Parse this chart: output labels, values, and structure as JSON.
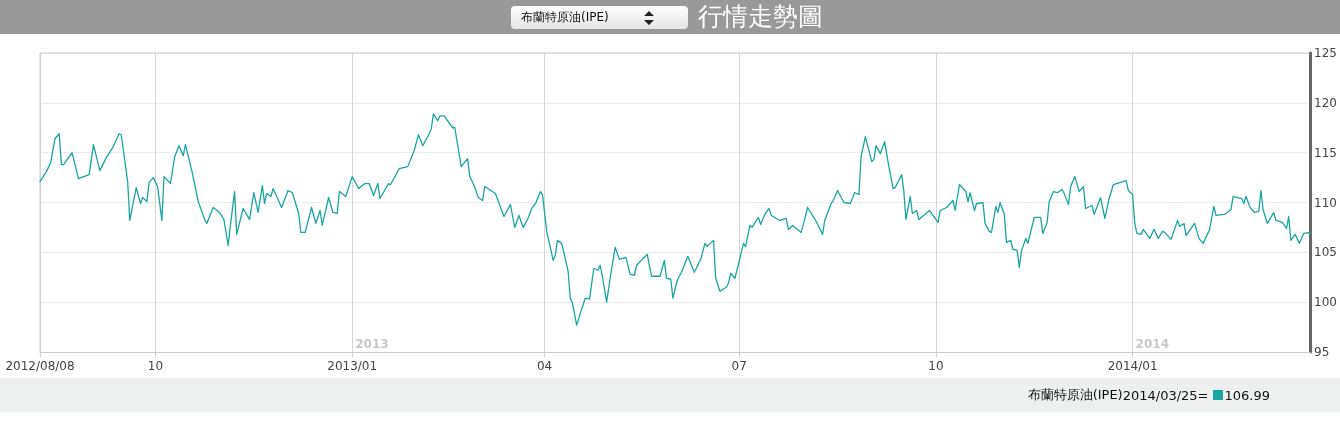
{
  "chart_data": {
    "type": "line",
    "title": "行情走勢圖",
    "subtitle": "布蘭特原油(IPE)",
    "x": [
      "2012-08-08",
      "2012-08-11",
      "2012-08-13",
      "2012-08-15",
      "2012-08-17",
      "2012-08-18",
      "2012-08-19",
      "2012-08-23",
      "2012-08-26",
      "2012-08-31",
      "2012-09-02",
      "2012-09-05",
      "2012-09-08",
      "2012-09-11",
      "2012-09-14",
      "2012-09-15",
      "2012-09-18",
      "2012-09-19",
      "2012-09-22",
      "2012-09-24",
      "2012-09-25",
      "2012-09-27",
      "2012-09-28",
      "2012-09-30",
      "2012-10-02",
      "2012-10-04",
      "2012-10-05",
      "2012-10-08",
      "2012-10-10",
      "2012-10-12",
      "2012-10-14",
      "2012-10-15",
      "2012-10-18",
      "2012-10-21",
      "2012-10-24",
      "2012-10-25",
      "2012-10-28",
      "2012-10-31",
      "2012-11-02",
      "2012-11-04",
      "2012-11-05",
      "2012-11-07",
      "2012-11-08",
      "2012-11-11",
      "2012-11-14",
      "2012-11-16",
      "2012-11-18",
      "2012-11-20",
      "2012-11-21",
      "2012-11-22",
      "2012-11-24",
      "2012-11-25",
      "2012-11-29",
      "2012-12-02",
      "2012-12-04",
      "2012-12-07",
      "2012-12-08",
      "2012-12-10",
      "2012-12-13",
      "2012-12-15",
      "2012-12-17",
      "2012-12-18",
      "2012-12-21",
      "2012-12-23",
      "2012-12-25",
      "2012-12-26",
      "2012-12-29",
      "2013-01-01",
      "2013-01-04",
      "2013-01-07",
      "2013-01-09",
      "2013-01-11",
      "2013-01-13",
      "2013-01-14",
      "2013-01-18",
      "2013-01-19",
      "2013-01-23",
      "2013-01-27",
      "2013-01-30",
      "2013-02-01",
      "2013-02-03",
      "2013-02-06",
      "2013-02-07",
      "2013-02-08",
      "2013-02-10",
      "2013-02-11",
      "2013-02-13",
      "2013-02-17",
      "2013-02-18",
      "2013-02-21",
      "2013-02-24",
      "2013-02-25",
      "2013-02-27",
      "2013-03-01",
      "2013-03-03",
      "2013-03-04",
      "2013-03-09",
      "2013-03-13",
      "2013-03-16",
      "2013-03-18",
      "2013-03-20",
      "2013-03-22",
      "2013-03-24",
      "2013-03-26",
      "2013-03-28",
      "2013-03-30",
      "2013-03-31",
      "2013-04-02",
      "2013-04-05",
      "2013-04-06",
      "2013-04-07",
      "2013-04-09",
      "2013-04-12",
      "2013-04-13",
      "2013-04-14",
      "2013-04-16",
      "2013-04-18",
      "2013-04-20",
      "2013-04-22",
      "2013-04-24",
      "2013-04-26",
      "2013-04-27",
      "2013-04-28",
      "2013-04-30",
      "2013-05-02",
      "2013-05-04",
      "2013-05-06",
      "2013-05-09",
      "2013-05-11",
      "2013-05-13",
      "2013-05-14",
      "2013-05-19",
      "2013-05-21",
      "2013-05-25",
      "2013-05-27",
      "2013-05-28",
      "2013-05-30",
      "2013-05-31",
      "2013-06-02",
      "2013-06-04",
      "2013-06-07",
      "2013-06-10",
      "2013-06-13",
      "2013-06-15",
      "2013-06-16",
      "2013-06-19",
      "2013-06-20",
      "2013-06-22",
      "2013-06-25",
      "2013-06-26",
      "2013-06-27",
      "2013-06-29",
      "2013-07-01",
      "2013-07-03",
      "2013-07-04",
      "2013-07-06",
      "2013-07-07",
      "2013-07-10",
      "2013-07-11",
      "2013-07-13",
      "2013-07-15",
      "2013-07-16",
      "2013-07-20",
      "2013-07-23",
      "2013-07-24",
      "2013-07-26",
      "2013-07-30",
      "2013-07-31",
      "2013-08-02",
      "2013-08-06",
      "2013-08-09",
      "2013-08-10",
      "2013-08-13",
      "2013-08-14",
      "2013-08-16",
      "2013-08-19",
      "2013-08-22",
      "2013-08-24",
      "2013-08-26",
      "2013-08-27",
      "2013-08-29",
      "2013-09-01",
      "2013-09-02",
      "2013-09-03",
      "2013-09-05",
      "2013-09-07",
      "2013-09-09",
      "2013-09-11",
      "2013-09-12",
      "2013-09-15",
      "2013-09-16",
      "2013-09-17",
      "2013-09-19",
      "2013-09-20",
      "2013-09-22",
      "2013-09-23",
      "2013-09-28",
      "2013-10-02",
      "2013-10-03",
      "2013-10-06",
      "2013-10-09",
      "2013-10-10",
      "2013-10-12",
      "2013-10-15",
      "2013-10-16",
      "2013-10-17",
      "2013-10-19",
      "2013-10-20",
      "2013-10-23",
      "2013-10-24",
      "2013-10-26",
      "2013-10-27",
      "2013-10-29",
      "2013-10-30",
      "2013-10-31",
      "2013-11-02",
      "2013-11-03",
      "2013-11-05",
      "2013-11-06",
      "2013-11-08",
      "2013-11-09",
      "2013-11-10",
      "2013-11-12",
      "2013-11-13",
      "2013-11-16",
      "2013-11-19",
      "2013-11-20",
      "2013-11-22",
      "2013-11-23",
      "2013-11-25",
      "2013-11-27",
      "2013-11-29",
      "2013-11-30",
      "2013-12-02",
      "2013-12-03",
      "2013-12-05",
      "2013-12-07",
      "2013-12-09",
      "2013-12-10",
      "2013-12-13",
      "2013-12-14",
      "2013-12-17",
      "2013-12-19",
      "2013-12-21",
      "2013-12-23",
      "2013-12-26",
      "2013-12-29",
      "2013-12-30",
      "2014-01-01",
      "2014-01-02",
      "2014-01-03",
      "2014-01-05",
      "2014-01-06",
      "2014-01-09",
      "2014-01-11",
      "2014-01-13",
      "2014-01-15",
      "2014-01-16",
      "2014-01-19",
      "2014-01-22",
      "2014-01-23",
      "2014-01-25",
      "2014-01-26",
      "2014-01-30",
      "2014-02-01",
      "2014-02-03",
      "2014-02-06",
      "2014-02-08",
      "2014-02-09",
      "2014-02-13",
      "2014-02-16",
      "2014-02-17",
      "2014-02-21",
      "2014-02-22",
      "2014-02-23",
      "2014-02-25",
      "2014-02-27",
      "2014-03-01",
      "2014-03-02",
      "2014-03-03",
      "2014-03-05",
      "2014-03-08",
      "2014-03-09",
      "2014-03-12",
      "2014-03-14",
      "2014-03-15",
      "2014-03-16",
      "2014-03-18",
      "2014-03-20",
      "2014-03-22",
      "2014-03-25"
    ],
    "series": [
      {
        "name": "布蘭特原油(IPE)",
        "color": "#1aa6a0",
        "values": [
          112.1,
          113.1,
          114.0,
          116.4,
          116.9,
          113.8,
          113.8,
          115.0,
          112.4,
          112.8,
          115.8,
          113.2,
          114.5,
          115.5,
          116.9,
          116.8,
          112.1,
          108.2,
          111.5,
          109.9,
          110.5,
          110.1,
          112.0,
          112.5,
          111.6,
          108.2,
          112.6,
          111.9,
          114.6,
          115.7,
          114.7,
          115.8,
          113.2,
          110.1,
          108.3,
          107.9,
          109.5,
          109.0,
          108.3,
          105.7,
          107.6,
          111.1,
          106.8,
          109.4,
          108.3,
          111.0,
          109.0,
          111.7,
          109.9,
          110.9,
          110.6,
          111.4,
          109.5,
          111.2,
          111.0,
          108.9,
          107.0,
          107.0,
          109.5,
          107.9,
          109.2,
          107.7,
          110.5,
          109.0,
          108.9,
          111.1,
          110.6,
          112.6,
          111.4,
          111.9,
          111.9,
          110.7,
          111.9,
          110.4,
          111.9,
          111.8,
          113.4,
          113.6,
          115.2,
          116.8,
          115.7,
          116.9,
          117.4,
          118.9,
          118.2,
          118.7,
          118.7,
          117.5,
          117.5,
          113.6,
          114.4,
          112.6,
          111.7,
          110.5,
          110.2,
          111.6,
          110.9,
          108.6,
          109.8,
          107.5,
          108.7,
          107.5,
          108.3,
          109.4,
          110.0,
          111.1,
          110.8,
          107.1,
          104.2,
          104.7,
          106.2,
          105.9,
          103.1,
          100.4,
          99.9,
          97.7,
          99.1,
          100.4,
          100.3,
          103.4,
          103.2,
          103.7,
          102.6,
          100.0,
          102.9,
          105.5,
          104.3,
          104.5,
          102.8,
          102.7,
          103.7,
          104.8,
          102.6,
          102.6,
          104.2,
          102.4,
          102.3,
          100.4,
          102.2,
          103.0,
          104.6,
          103.0,
          104.3,
          105.9,
          105.6,
          106.2,
          102.4,
          101.1,
          101.5,
          101.9,
          102.9,
          102.4,
          104.1,
          105.9,
          105.6,
          107.7,
          107.5,
          108.5,
          107.8,
          108.8,
          109.4,
          108.7,
          108.2,
          108.4,
          107.3,
          107.7,
          107.0,
          107.8,
          109.5,
          108.1,
          106.8,
          108.2,
          109.9,
          110.2,
          111.2,
          110.0,
          109.9,
          111.0,
          110.8,
          114.6,
          116.6,
          114.1,
          114.3,
          115.7,
          114.9,
          116.1,
          113.6,
          111.4,
          111.5,
          112.8,
          111.1,
          108.3,
          110.6,
          108.9,
          109.2,
          108.3,
          109.2,
          108.0,
          109.2,
          109.5,
          110.2,
          109.2,
          111.8,
          111.1,
          110.1,
          111.0,
          109.2,
          109.9,
          110.0,
          107.9,
          107.1,
          107.0,
          109.6,
          109.0,
          110.0,
          108.8,
          106.0,
          106.2,
          105.3,
          105.2,
          103.5,
          105.1,
          106.4,
          105.9,
          108.5,
          108.5,
          106.9,
          108.0,
          110.1,
          111.1,
          111.0,
          111.3,
          110.9,
          109.8,
          111.6,
          112.6,
          111.1,
          111.6,
          109.4,
          109.7,
          108.8,
          110.5,
          108.4,
          110.4,
          111.8,
          112.0,
          112.2,
          111.2,
          110.8,
          107.9,
          106.9,
          106.8,
          107.3,
          106.4,
          107.3,
          106.4,
          107.1,
          107.0,
          106.3,
          108.2,
          107.6,
          107.9,
          106.7,
          107.9,
          106.4,
          105.9,
          107.3,
          109.6,
          108.7,
          108.8,
          109.3,
          110.6,
          110.4,
          109.9,
          110.6,
          109.5,
          109.0,
          109.1,
          111.2,
          109.3,
          107.9,
          109.0,
          108.2,
          108.0,
          107.4,
          108.6,
          106.2,
          106.8,
          105.9,
          106.9,
          106.99
        ]
      }
    ],
    "xlim": [
      "2012-08-08",
      "2014-03-25"
    ],
    "xticks": [
      {
        "value": "2012-08-08",
        "label": "2012/08/08"
      },
      {
        "value": "2012-10-01",
        "label": "10"
      },
      {
        "value": "2013-01-01",
        "label": "2013/01"
      },
      {
        "value": "2013-04-01",
        "label": "04"
      },
      {
        "value": "2013-07-01",
        "label": "07"
      },
      {
        "value": "2013-10-01",
        "label": "10"
      },
      {
        "value": "2014-01-01",
        "label": "2014/01"
      }
    ],
    "ylim": [
      95,
      125
    ],
    "yticks": [
      95,
      100,
      105,
      110,
      115,
      120,
      125
    ],
    "grid": true,
    "legend": "bottom right",
    "marker": "none",
    "line_style": "solid",
    "annotations": [
      "2013",
      "2014",
      "2014/03/25=",
      "106.99"
    ]
  }
}
